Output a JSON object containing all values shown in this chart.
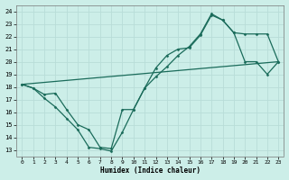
{
  "xlabel": "Humidex (Indice chaleur)",
  "bg_color": "#cceee8",
  "grid_color": "#aadddd",
  "line_color": "#1a6b5a",
  "xlim": [
    -0.5,
    23.5
  ],
  "ylim": [
    12.5,
    24.5
  ],
  "xticks": [
    0,
    1,
    2,
    3,
    4,
    5,
    6,
    7,
    8,
    9,
    10,
    11,
    12,
    13,
    14,
    15,
    16,
    17,
    18,
    19,
    20,
    21,
    22,
    23
  ],
  "yticks": [
    13,
    14,
    15,
    16,
    17,
    18,
    19,
    20,
    21,
    22,
    23,
    24
  ],
  "line1_x": [
    0,
    1,
    2,
    3,
    4,
    5,
    6,
    7,
    8,
    9,
    10,
    11,
    12,
    13,
    14,
    15,
    16,
    17,
    18,
    19,
    20,
    21,
    22,
    23
  ],
  "line1_y": [
    18.2,
    17.9,
    17.1,
    16.4,
    15.5,
    14.6,
    13.2,
    13.1,
    12.9,
    14.4,
    16.2,
    17.9,
    18.8,
    19.6,
    20.5,
    21.2,
    22.2,
    23.8,
    23.3,
    22.3,
    22.2,
    22.2,
    22.2,
    20.0
  ],
  "line2_x": [
    0,
    1,
    2,
    3,
    4,
    5,
    6,
    7,
    8,
    9,
    10,
    11,
    12,
    13,
    14,
    15,
    16,
    17,
    18,
    19,
    20,
    21,
    22,
    23
  ],
  "line2_y": [
    18.2,
    17.9,
    17.4,
    17.5,
    16.2,
    15.0,
    14.6,
    13.2,
    13.1,
    16.2,
    16.2,
    17.9,
    19.5,
    20.5,
    21.0,
    21.1,
    22.1,
    23.7,
    23.3,
    22.3,
    20.0,
    20.0,
    19.0,
    20.0
  ],
  "line3_x": [
    0,
    23
  ],
  "line3_y": [
    18.2,
    20.0
  ]
}
